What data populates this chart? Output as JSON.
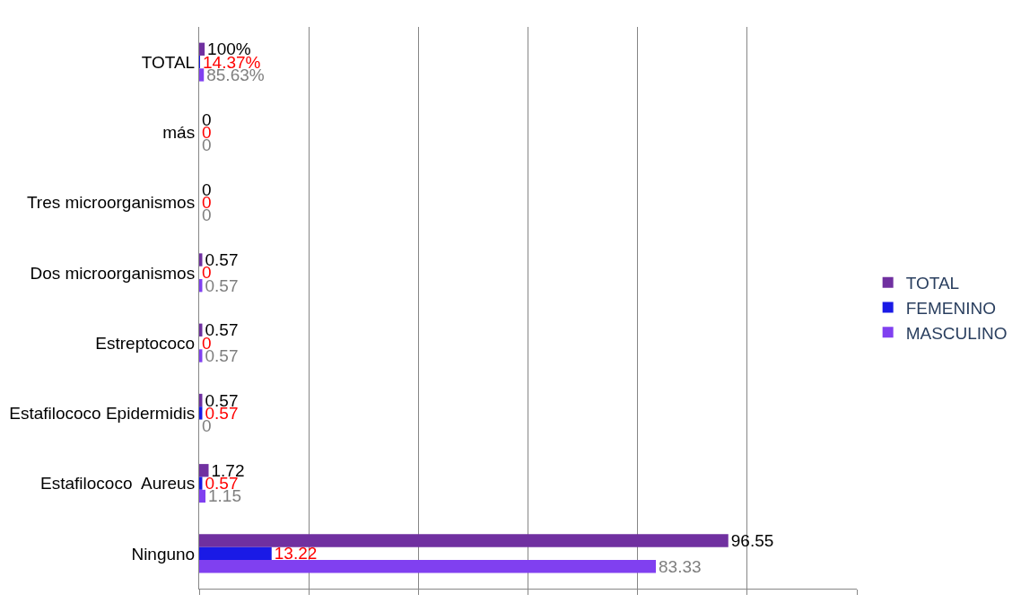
{
  "chart_data": {
    "type": "bar",
    "orientation": "horizontal",
    "categories": [
      "TOTAL",
      "más",
      "Tres microorganismos",
      "Dos microorganismos",
      "Estreptococo",
      "Estafilococo Epidermidis",
      "Estafilococo  Aureus",
      "Ninguno"
    ],
    "series": [
      {
        "name": "TOTAL",
        "color": "#7030a0",
        "values": [
          1,
          0,
          0,
          0.57,
          0.57,
          0.57,
          1.72,
          96.55
        ],
        "value_labels": [
          "100%",
          "0",
          "0",
          "0.57",
          "0.57",
          "0.57",
          "1.72",
          "96.55"
        ]
      },
      {
        "name": "FEMENINO",
        "color": "#1a1ae6",
        "values": [
          0.1437,
          0,
          0,
          0,
          0,
          0.57,
          0.57,
          13.22
        ],
        "value_labels": [
          "14.37%",
          "0",
          "0",
          "0",
          "0",
          "0.57",
          "0.57",
          "13.22"
        ]
      },
      {
        "name": "MASCULINO",
        "color": "#8040f0",
        "values": [
          0.8563,
          0,
          0,
          0.57,
          0.57,
          0,
          1.15,
          83.33
        ],
        "value_labels": [
          "85.63%",
          "0",
          "0",
          "0.57",
          "0.57",
          "0",
          "1.15",
          "83.33"
        ]
      }
    ],
    "xlim": [
      0,
      120
    ],
    "xticks": [
      {
        "value": 0,
        "label": null
      },
      {
        "value": 20,
        "label": null
      },
      {
        "value": 40,
        "label": null
      },
      {
        "value": 60,
        "label": null
      },
      {
        "value": 80,
        "label": null
      },
      {
        "value": 100,
        "label": null
      },
      {
        "value": 120,
        "label": null
      }
    ],
    "tick_labels": "y",
    "grid": "x",
    "legend": "right"
  }
}
